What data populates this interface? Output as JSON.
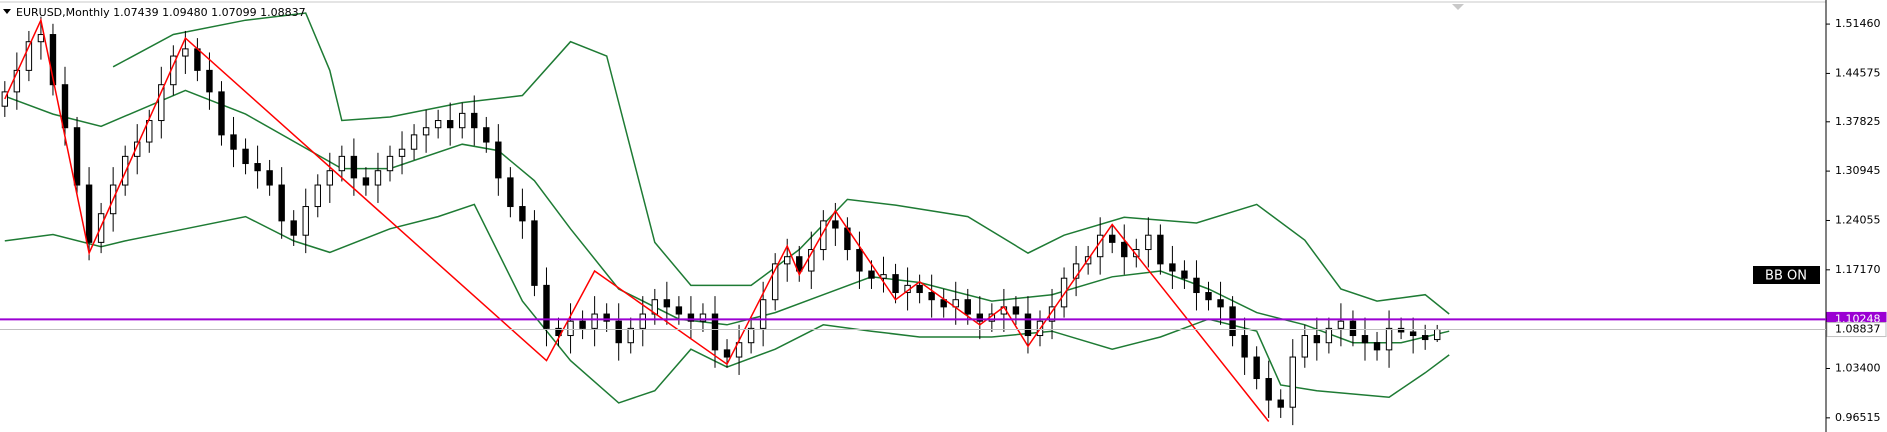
{
  "chart_data": {
    "type": "candlestick",
    "title": "EURUSD,Monthly  1.07439 1.09480 1.07099 1.08837",
    "annotation": "BB ON",
    "ylim": [
      0.9454,
      1.5482
    ],
    "xlim": [
      -0.4,
      151.3
    ],
    "yticks": [
      {
        "value": 1.5146,
        "label": "1.51460"
      },
      1.44575,
      1.37825,
      1.30945,
      1.24055,
      {
        "value": 1.1717,
        "label": "1.17170"
      },
      {
        "value": 1.034,
        "label": "1.03400"
      },
      0.96515
    ],
    "up_color": "#ffffff",
    "down_color": "#000000",
    "ohlc": [
      [
        1.4,
        1.435,
        1.385,
        1.42
      ],
      [
        1.42,
        1.475,
        1.395,
        1.45
      ],
      [
        1.45,
        1.505,
        1.435,
        1.49
      ],
      [
        1.49,
        1.525,
        1.465,
        1.5
      ],
      [
        1.5,
        1.515,
        1.415,
        1.43
      ],
      [
        1.43,
        1.455,
        1.345,
        1.37
      ],
      [
        1.37,
        1.385,
        1.275,
        1.29
      ],
      [
        1.29,
        1.315,
        1.185,
        1.21
      ],
      [
        1.21,
        1.265,
        1.195,
        1.25
      ],
      [
        1.25,
        1.315,
        1.225,
        1.29
      ],
      [
        1.29,
        1.345,
        1.275,
        1.33
      ],
      [
        1.33,
        1.375,
        1.305,
        1.35
      ],
      [
        1.35,
        1.395,
        1.335,
        1.38
      ],
      [
        1.38,
        1.455,
        1.355,
        1.43
      ],
      [
        1.43,
        1.485,
        1.415,
        1.47
      ],
      [
        1.47,
        1.505,
        1.445,
        1.48
      ],
      [
        1.48,
        1.495,
        1.435,
        1.45
      ],
      [
        1.45,
        1.475,
        1.395,
        1.42
      ],
      [
        1.42,
        1.435,
        1.345,
        1.36
      ],
      [
        1.36,
        1.385,
        1.315,
        1.34
      ],
      [
        1.34,
        1.355,
        1.305,
        1.32
      ],
      [
        1.32,
        1.345,
        1.285,
        1.31
      ],
      [
        1.31,
        1.325,
        1.275,
        1.29
      ],
      [
        1.29,
        1.315,
        1.215,
        1.24
      ],
      [
        1.24,
        1.255,
        1.205,
        1.22
      ],
      [
        1.22,
        1.285,
        1.195,
        1.26
      ],
      [
        1.26,
        1.305,
        1.245,
        1.29
      ],
      [
        1.29,
        1.335,
        1.265,
        1.31
      ],
      [
        1.31,
        1.345,
        1.295,
        1.33
      ],
      [
        1.33,
        1.355,
        1.275,
        1.3
      ],
      [
        1.3,
        1.315,
        1.275,
        1.29
      ],
      [
        1.29,
        1.335,
        1.265,
        1.31
      ],
      [
        1.31,
        1.345,
        1.295,
        1.33
      ],
      [
        1.33,
        1.365,
        1.305,
        1.34
      ],
      [
        1.34,
        1.375,
        1.325,
        1.36
      ],
      [
        1.36,
        1.395,
        1.335,
        1.37
      ],
      [
        1.37,
        1.395,
        1.355,
        1.38
      ],
      [
        1.38,
        1.405,
        1.345,
        1.37
      ],
      [
        1.37,
        1.405,
        1.355,
        1.39
      ],
      [
        1.39,
        1.415,
        1.345,
        1.37
      ],
      [
        1.37,
        1.385,
        1.335,
        1.35
      ],
      [
        1.35,
        1.375,
        1.275,
        1.3
      ],
      [
        1.3,
        1.315,
        1.245,
        1.26
      ],
      [
        1.26,
        1.285,
        1.215,
        1.24
      ],
      [
        1.24,
        1.255,
        1.135,
        1.15
      ],
      [
        1.15,
        1.175,
        1.065,
        1.09
      ],
      [
        1.09,
        1.105,
        1.065,
        1.08
      ],
      [
        1.08,
        1.125,
        1.055,
        1.1
      ],
      [
        1.1,
        1.115,
        1.075,
        1.09
      ],
      [
        1.09,
        1.135,
        1.065,
        1.11
      ],
      [
        1.11,
        1.125,
        1.085,
        1.1
      ],
      [
        1.1,
        1.125,
        1.045,
        1.07
      ],
      [
        1.07,
        1.105,
        1.055,
        1.09
      ],
      [
        1.09,
        1.135,
        1.065,
        1.11
      ],
      [
        1.11,
        1.145,
        1.095,
        1.13
      ],
      [
        1.13,
        1.155,
        1.095,
        1.12
      ],
      [
        1.12,
        1.135,
        1.095,
        1.11
      ],
      [
        1.11,
        1.135,
        1.075,
        1.1
      ],
      [
        1.1,
        1.125,
        1.085,
        1.11
      ],
      [
        1.11,
        1.135,
        1.035,
        1.06
      ],
      [
        1.06,
        1.075,
        1.035,
        1.05
      ],
      [
        1.05,
        1.095,
        1.025,
        1.07
      ],
      [
        1.07,
        1.105,
        1.055,
        1.09
      ],
      [
        1.09,
        1.155,
        1.065,
        1.13
      ],
      [
        1.13,
        1.195,
        1.115,
        1.18
      ],
      [
        1.18,
        1.215,
        1.155,
        1.19
      ],
      [
        1.19,
        1.205,
        1.155,
        1.17
      ],
      [
        1.17,
        1.225,
        1.145,
        1.2
      ],
      [
        1.2,
        1.255,
        1.185,
        1.24
      ],
      [
        1.24,
        1.265,
        1.205,
        1.23
      ],
      [
        1.23,
        1.245,
        1.185,
        1.2
      ],
      [
        1.2,
        1.225,
        1.145,
        1.17
      ],
      [
        1.17,
        1.185,
        1.145,
        1.16
      ],
      [
        1.16,
        1.19,
        1.14,
        1.165
      ],
      [
        1.165,
        1.18,
        1.125,
        1.14
      ],
      [
        1.14,
        1.175,
        1.115,
        1.15
      ],
      [
        1.15,
        1.165,
        1.125,
        1.14
      ],
      [
        1.14,
        1.165,
        1.105,
        1.13
      ],
      [
        1.13,
        1.145,
        1.105,
        1.12
      ],
      [
        1.12,
        1.155,
        1.095,
        1.13
      ],
      [
        1.13,
        1.145,
        1.095,
        1.11
      ],
      [
        1.11,
        1.135,
        1.075,
        1.1
      ],
      [
        1.1,
        1.125,
        1.085,
        1.11
      ],
      [
        1.11,
        1.145,
        1.085,
        1.12
      ],
      [
        1.12,
        1.135,
        1.095,
        1.11
      ],
      [
        1.11,
        1.135,
        1.055,
        1.08
      ],
      [
        1.08,
        1.115,
        1.065,
        1.1
      ],
      [
        1.1,
        1.145,
        1.075,
        1.12
      ],
      [
        1.12,
        1.175,
        1.105,
        1.16
      ],
      [
        1.16,
        1.205,
        1.135,
        1.18
      ],
      [
        1.18,
        1.205,
        1.165,
        1.19
      ],
      [
        1.19,
        1.245,
        1.165,
        1.22
      ],
      [
        1.22,
        1.235,
        1.195,
        1.21
      ],
      [
        1.21,
        1.235,
        1.165,
        1.19
      ],
      [
        1.19,
        1.215,
        1.175,
        1.2
      ],
      [
        1.2,
        1.245,
        1.175,
        1.22
      ],
      [
        1.22,
        1.235,
        1.165,
        1.18
      ],
      [
        1.18,
        1.205,
        1.145,
        1.17
      ],
      [
        1.17,
        1.185,
        1.145,
        1.16
      ],
      [
        1.16,
        1.185,
        1.115,
        1.14
      ],
      [
        1.14,
        1.155,
        1.115,
        1.13
      ],
      [
        1.13,
        1.155,
        1.095,
        1.12
      ],
      [
        1.12,
        1.135,
        1.065,
        1.08
      ],
      [
        1.08,
        1.105,
        1.025,
        1.05
      ],
      [
        1.05,
        1.065,
        1.005,
        1.02
      ],
      [
        1.02,
        1.045,
        0.965,
        0.99
      ],
      [
        0.99,
        1.005,
        0.965,
        0.98
      ],
      [
        0.98,
        1.075,
        0.955,
        1.05
      ],
      [
        1.05,
        1.095,
        1.035,
        1.08
      ],
      [
        1.08,
        1.105,
        1.045,
        1.07
      ],
      [
        1.07,
        1.105,
        1.055,
        1.09
      ],
      [
        1.09,
        1.125,
        1.065,
        1.1
      ],
      [
        1.1,
        1.115,
        1.065,
        1.08
      ],
      [
        1.08,
        1.105,
        1.045,
        1.07
      ],
      [
        1.07,
        1.085,
        1.045,
        1.06
      ],
      [
        1.06,
        1.115,
        1.035,
        1.09
      ],
      [
        1.09,
        1.105,
        1.075,
        1.085
      ],
      [
        1.085,
        1.105,
        1.055,
        1.08
      ],
      [
        1.08,
        1.095,
        1.06,
        1.0744
      ],
      [
        1.07439,
        1.0948,
        1.07099,
        1.08837
      ]
    ],
    "bands": [
      {
        "color": "#1e7b34",
        "x": [
          9,
          14,
          20,
          25,
          27,
          28,
          32,
          38,
          43,
          47,
          50,
          54,
          57,
          62,
          66,
          70,
          74,
          80,
          85,
          88,
          93,
          99,
          104,
          108,
          111,
          114,
          118,
          120
        ],
        "values": [
          1.455,
          1.5,
          1.52,
          1.53,
          1.45,
          1.38,
          1.385,
          1.405,
          1.415,
          1.49,
          1.47,
          1.21,
          1.15,
          1.15,
          1.2,
          1.27,
          1.262,
          1.246,
          1.195,
          1.22,
          1.245,
          1.237,
          1.263,
          1.213,
          1.145,
          1.128,
          1.137,
          1.11
        ]
      },
      {
        "color": "#1e7b34",
        "x": [
          0,
          4,
          8,
          15,
          20,
          28,
          32,
          38,
          41,
          44,
          47,
          51,
          56,
          60,
          64,
          68,
          72,
          76,
          82,
          87,
          92,
          96,
          100,
          104,
          108,
          112,
          116,
          120
        ],
        "values": [
          1.414,
          1.389,
          1.372,
          1.422,
          1.389,
          1.313,
          1.313,
          1.347,
          1.338,
          1.296,
          1.229,
          1.145,
          1.103,
          1.095,
          1.112,
          1.137,
          1.162,
          1.154,
          1.128,
          1.137,
          1.162,
          1.17,
          1.145,
          1.112,
          1.095,
          1.07,
          1.07,
          1.086
        ]
      },
      {
        "color": "#1e7b34",
        "x": [
          0,
          4,
          8,
          10,
          15,
          20,
          24,
          27,
          32,
          36,
          39,
          43,
          47,
          51,
          54,
          57,
          60,
          64,
          68,
          72,
          76,
          82,
          87,
          92,
          96,
          100,
          104,
          106,
          109,
          115,
          118,
          120
        ],
        "values": [
          1.212,
          1.221,
          1.204,
          1.212,
          1.229,
          1.246,
          1.212,
          1.196,
          1.229,
          1.246,
          1.263,
          1.128,
          1.045,
          0.986,
          1.003,
          1.061,
          1.036,
          1.061,
          1.095,
          1.086,
          1.078,
          1.078,
          1.086,
          1.061,
          1.078,
          1.103,
          1.086,
          1.011,
          1.003,
          0.994,
          1.028,
          1.053
        ]
      }
    ],
    "zigzag": {
      "color": "#ff0000",
      "x": [
        0,
        3,
        7,
        15,
        45,
        49,
        60,
        65,
        66,
        69,
        74,
        76,
        81,
        83,
        85,
        92,
        105
      ],
      "values": [
        1.41,
        1.52,
        1.195,
        1.495,
        1.045,
        1.17,
        1.04,
        1.205,
        1.165,
        1.254,
        1.13,
        1.155,
        1.095,
        1.12,
        1.065,
        1.235,
        0.96
      ]
    },
    "price_lines": [
      {
        "value": 1.10248,
        "color": "#9b00d3",
        "text_color": "#ffffff"
      },
      {
        "value": 1.08837,
        "color": "#c0c0c0",
        "text_color": "#000000"
      }
    ]
  }
}
